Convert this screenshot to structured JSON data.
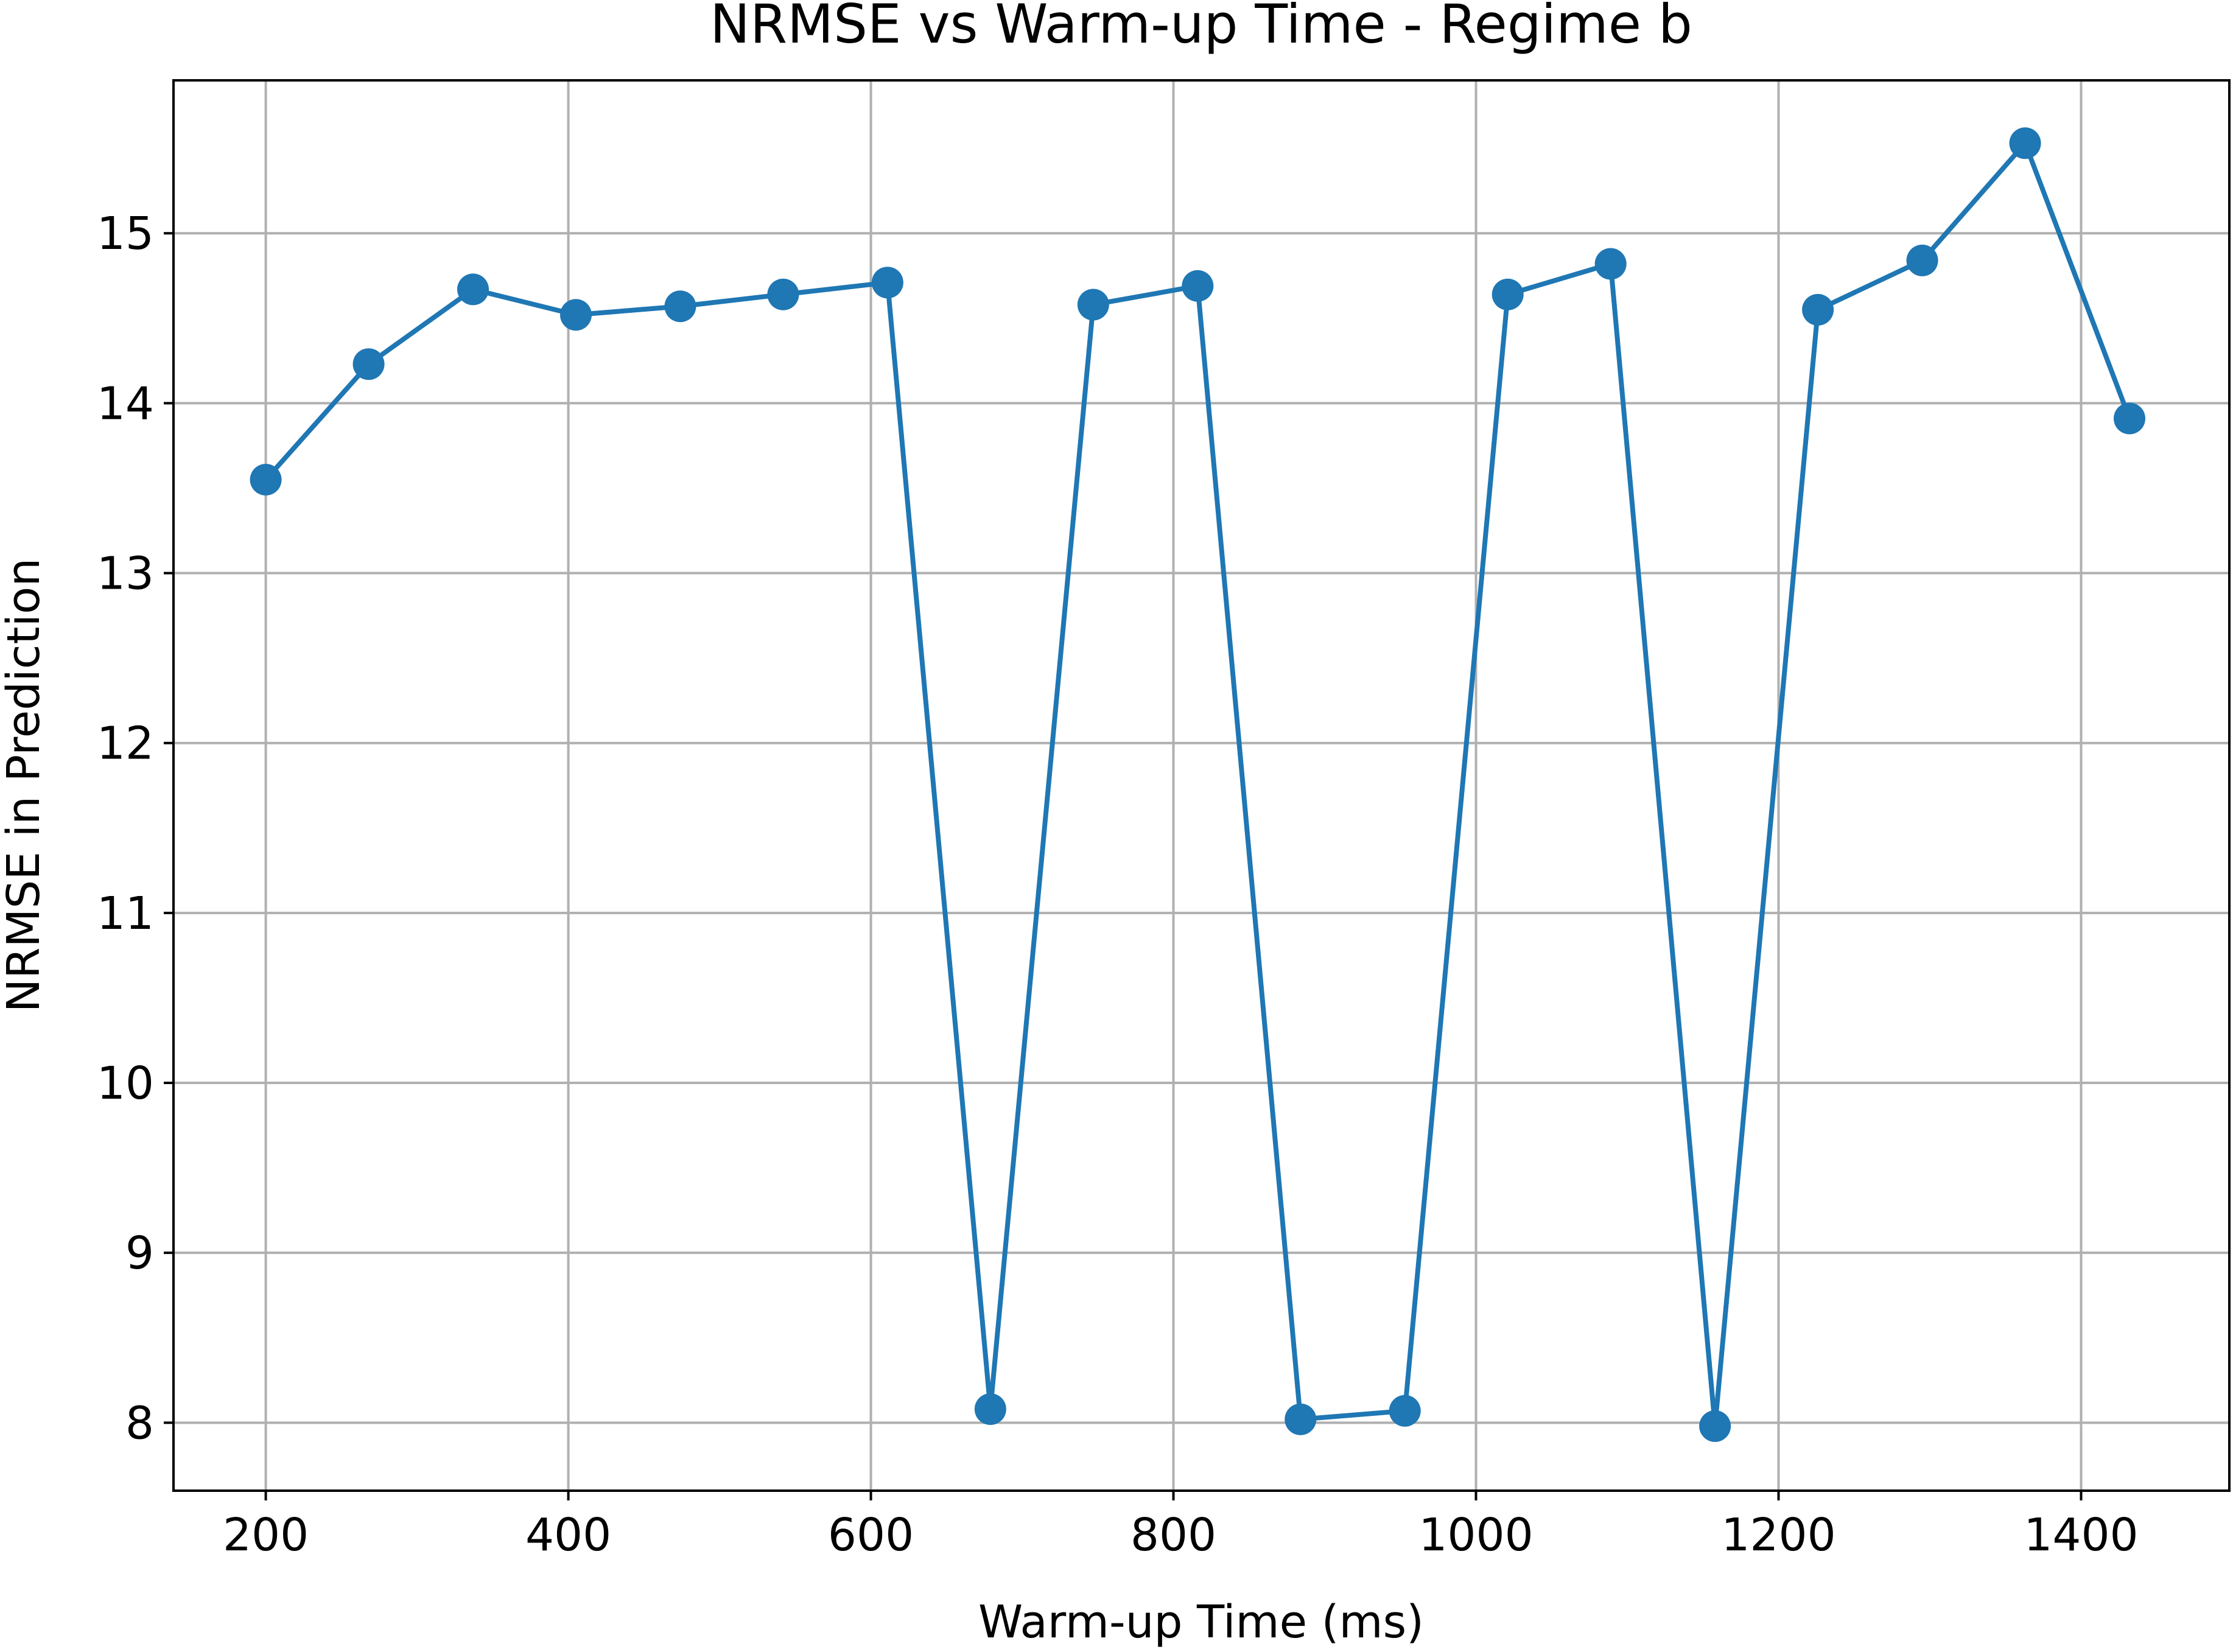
{
  "chart_data": {
    "type": "line",
    "title": "NRMSE vs Warm-up Time - Regime b",
    "xlabel": "Warm-up Time (ms)",
    "ylabel": "NRMSE in Prediction",
    "xlim": [
      139,
      1498
    ],
    "ylim": [
      7.6,
      15.9
    ],
    "xticks": [
      200,
      400,
      600,
      800,
      1000,
      1200,
      1400
    ],
    "yticks": [
      8,
      9,
      10,
      11,
      12,
      13,
      14,
      15
    ],
    "grid": true,
    "series": [
      {
        "color": "#1f77b4",
        "marker": "circle",
        "x": [
          200,
          268,
          337,
          405,
          474,
          542,
          611,
          679,
          747,
          816,
          884,
          953,
          1021,
          1089,
          1158,
          1226,
          1295,
          1363,
          1432
        ],
        "y": [
          13.55,
          14.23,
          14.67,
          14.52,
          14.57,
          14.64,
          14.71,
          8.08,
          14.58,
          14.69,
          8.02,
          8.07,
          14.64,
          14.82,
          7.98,
          14.55,
          14.84,
          15.53,
          13.91
        ]
      }
    ]
  }
}
